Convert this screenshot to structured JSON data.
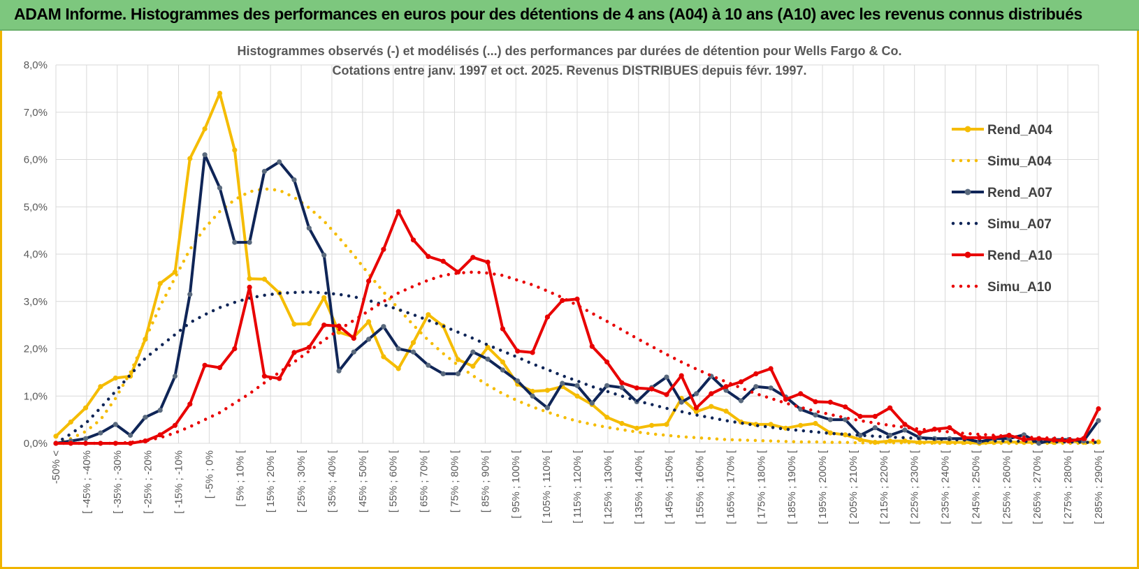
{
  "header": {
    "title": "ADAM Informe. Histogrammes des performances en euros pour des détentions de 4 ans (A04) à 10 ans (A10) avec les revenus connus distribués"
  },
  "chart_data": {
    "type": "line",
    "title": "Histogrammes observés (-) et modélisés (...) des performances par durées de détention pour Wells Fargo & Co.",
    "subtitle": "Cotations entre janv. 1997 et oct. 2025. Revenus DISTRIBUES depuis févr. 1997.",
    "xlabel": "",
    "ylabel": "",
    "ylim": [
      0,
      8
    ],
    "y_ticks": [
      "0,0%",
      "1,0%",
      "2,0%",
      "3,0%",
      "4,0%",
      "5,0%",
      "6,0%",
      "7,0%",
      "8,0%"
    ],
    "grid": true,
    "legend_position": "right",
    "x_labels": [
      "-50% <",
      "[ -45% ; -40%",
      "[ -35% ; -30%",
      "[ -25% ; -20%",
      "[ -15% ; -10%",
      "[ -5% ; 0%",
      "[ 5% ; 10% [",
      "[ 15% ; 20% [",
      "[ 25% ; 30% [",
      "[ 35% ; 40% [",
      "[ 45% ; 50% [",
      "[ 55% ; 60% [",
      "[ 65% ; 70% [",
      "[ 75% ; 80% [",
      "[ 85% ; 90% [",
      "[ 95% ; 100% [",
      "[ 105% ; 110% [",
      "[ 115% ; 120% [",
      "[ 125% ; 130% [",
      "[ 135% ; 140% [",
      "[ 145% ; 150% [",
      "[ 155% ; 160% [",
      "[ 165% ; 170% [",
      "[ 175% ; 180% [",
      "[ 185% ; 190% [",
      "[ 195% ; 200% [",
      "[ 205% ; 210% [",
      "[ 215% ; 220% [",
      "[ 225% ; 230% [",
      "[ 235% ; 240% [",
      "[ 245% ; 250% [",
      "[ 255% ; 260% [",
      "[ 265% ; 270% [",
      "[ 275% ; 280% [",
      "[ 285% ; 290% ["
    ],
    "series": [
      {
        "name": "Rend_A04",
        "style": "solid",
        "markers": true,
        "color": "#f5bc00",
        "values": [
          0.15,
          0.45,
          0.75,
          1.2,
          1.38,
          1.42,
          2.2,
          3.38,
          3.62,
          6.02,
          6.65,
          7.4,
          6.2,
          3.48,
          3.47,
          3.18,
          2.52,
          2.53,
          3.08,
          2.35,
          2.25,
          2.57,
          1.83,
          1.58,
          2.13,
          2.72,
          2.48,
          1.77,
          1.63,
          2.03,
          1.72,
          1.25,
          1.1,
          1.12,
          1.2,
          1.0,
          0.82,
          0.55,
          0.42,
          0.32,
          0.38,
          0.4,
          0.95,
          0.67,
          0.78,
          0.68,
          0.45,
          0.4,
          0.4,
          0.32,
          0.38,
          0.42,
          0.22,
          0.18,
          0.08,
          0.02,
          0.05,
          0.05,
          0.02,
          0.03,
          0.02,
          0.02,
          0.0,
          0.02,
          0.03,
          0.02,
          0.02,
          0.02,
          0.05,
          0.02,
          0.03
        ]
      },
      {
        "name": "Simu_A04",
        "style": "dotted",
        "markers": false,
        "color": "#f5bc00",
        "values": [
          0.0,
          0.1,
          0.25,
          0.5,
          0.95,
          1.5,
          2.2,
          2.9,
          3.5,
          4.1,
          4.55,
          4.9,
          5.15,
          5.32,
          5.38,
          5.35,
          5.2,
          4.98,
          4.7,
          4.35,
          3.98,
          3.58,
          3.2,
          2.85,
          2.5,
          2.18,
          1.9,
          1.65,
          1.43,
          1.23,
          1.05,
          0.9,
          0.77,
          0.66,
          0.56,
          0.47,
          0.4,
          0.34,
          0.29,
          0.24,
          0.2,
          0.17,
          0.14,
          0.12,
          0.1,
          0.08,
          0.07,
          0.06,
          0.05,
          0.04,
          0.03,
          0.03,
          0.02,
          0.02,
          0.01,
          0.01,
          0.01,
          0.01,
          0.01,
          0.0,
          0.0,
          0.0,
          0.0,
          0.0,
          0.0,
          0.0,
          0.0,
          0.0,
          0.0,
          0.0,
          0.0
        ]
      },
      {
        "name": "Rend_A07",
        "style": "solid",
        "markers": true,
        "color": "#0f2557",
        "values": [
          0.0,
          0.05,
          0.1,
          0.22,
          0.4,
          0.17,
          0.55,
          0.7,
          1.42,
          3.15,
          6.1,
          5.4,
          4.25,
          4.25,
          5.75,
          5.95,
          5.57,
          4.55,
          3.98,
          1.53,
          1.93,
          2.2,
          2.47,
          2.0,
          1.93,
          1.65,
          1.47,
          1.47,
          1.93,
          1.78,
          1.55,
          1.32,
          1.0,
          0.75,
          1.27,
          1.22,
          0.85,
          1.22,
          1.18,
          0.88,
          1.18,
          1.4,
          0.87,
          1.05,
          1.42,
          1.12,
          0.9,
          1.2,
          1.17,
          0.98,
          0.72,
          0.6,
          0.5,
          0.5,
          0.17,
          0.33,
          0.17,
          0.28,
          0.12,
          0.1,
          0.1,
          0.1,
          0.03,
          0.1,
          0.1,
          0.18,
          0.0,
          0.08,
          0.08,
          0.05,
          0.48
        ]
      },
      {
        "name": "Simu_A07",
        "style": "dotted",
        "markers": false,
        "color": "#0f2557",
        "values": [
          0.0,
          0.2,
          0.42,
          0.75,
          1.1,
          1.45,
          1.8,
          2.05,
          2.3,
          2.55,
          2.72,
          2.87,
          2.98,
          3.07,
          3.13,
          3.17,
          3.19,
          3.2,
          3.18,
          3.15,
          3.1,
          3.02,
          2.93,
          2.83,
          2.72,
          2.6,
          2.48,
          2.35,
          2.22,
          2.08,
          1.95,
          1.82,
          1.68,
          1.56,
          1.43,
          1.32,
          1.2,
          1.1,
          1.0,
          0.9,
          0.82,
          0.74,
          0.67,
          0.6,
          0.54,
          0.48,
          0.43,
          0.38,
          0.34,
          0.3,
          0.27,
          0.24,
          0.21,
          0.19,
          0.17,
          0.15,
          0.13,
          0.12,
          0.1,
          0.09,
          0.08,
          0.07,
          0.06,
          0.05,
          0.05,
          0.04,
          0.04,
          0.03,
          0.03,
          0.02,
          0.02
        ]
      },
      {
        "name": "Rend_A10",
        "style": "solid",
        "markers": true,
        "color": "#e80000",
        "values": [
          0.0,
          0.0,
          0.0,
          0.0,
          0.0,
          0.0,
          0.05,
          0.18,
          0.38,
          0.83,
          1.65,
          1.6,
          2.0,
          3.3,
          1.42,
          1.37,
          1.92,
          2.03,
          2.5,
          2.48,
          2.22,
          3.43,
          4.1,
          4.9,
          4.3,
          3.95,
          3.85,
          3.62,
          3.93,
          3.83,
          2.42,
          1.95,
          1.92,
          2.67,
          3.02,
          3.05,
          2.05,
          1.72,
          1.28,
          1.17,
          1.15,
          1.03,
          1.43,
          0.75,
          1.05,
          1.2,
          1.3,
          1.47,
          1.58,
          0.93,
          1.05,
          0.88,
          0.87,
          0.77,
          0.57,
          0.57,
          0.75,
          0.4,
          0.22,
          0.3,
          0.33,
          0.12,
          0.12,
          0.12,
          0.17,
          0.08,
          0.1,
          0.07,
          0.05,
          0.1,
          0.73
        ]
      },
      {
        "name": "Simu_A10",
        "style": "dotted",
        "markers": false,
        "color": "#e80000",
        "values": [
          0.0,
          0.0,
          0.0,
          0.0,
          0.0,
          0.02,
          0.05,
          0.12,
          0.22,
          0.35,
          0.5,
          0.65,
          0.85,
          1.05,
          1.28,
          1.5,
          1.72,
          1.95,
          2.18,
          2.4,
          2.6,
          2.8,
          3.0,
          3.18,
          3.32,
          3.45,
          3.55,
          3.6,
          3.62,
          3.6,
          3.55,
          3.45,
          3.35,
          3.22,
          3.08,
          2.92,
          2.75,
          2.58,
          2.4,
          2.22,
          2.05,
          1.88,
          1.72,
          1.57,
          1.43,
          1.3,
          1.17,
          1.05,
          0.95,
          0.85,
          0.76,
          0.68,
          0.61,
          0.54,
          0.48,
          0.43,
          0.38,
          0.34,
          0.3,
          0.27,
          0.24,
          0.21,
          0.19,
          0.17,
          0.15,
          0.13,
          0.12,
          0.11,
          0.1,
          0.09,
          0.05
        ]
      }
    ]
  }
}
